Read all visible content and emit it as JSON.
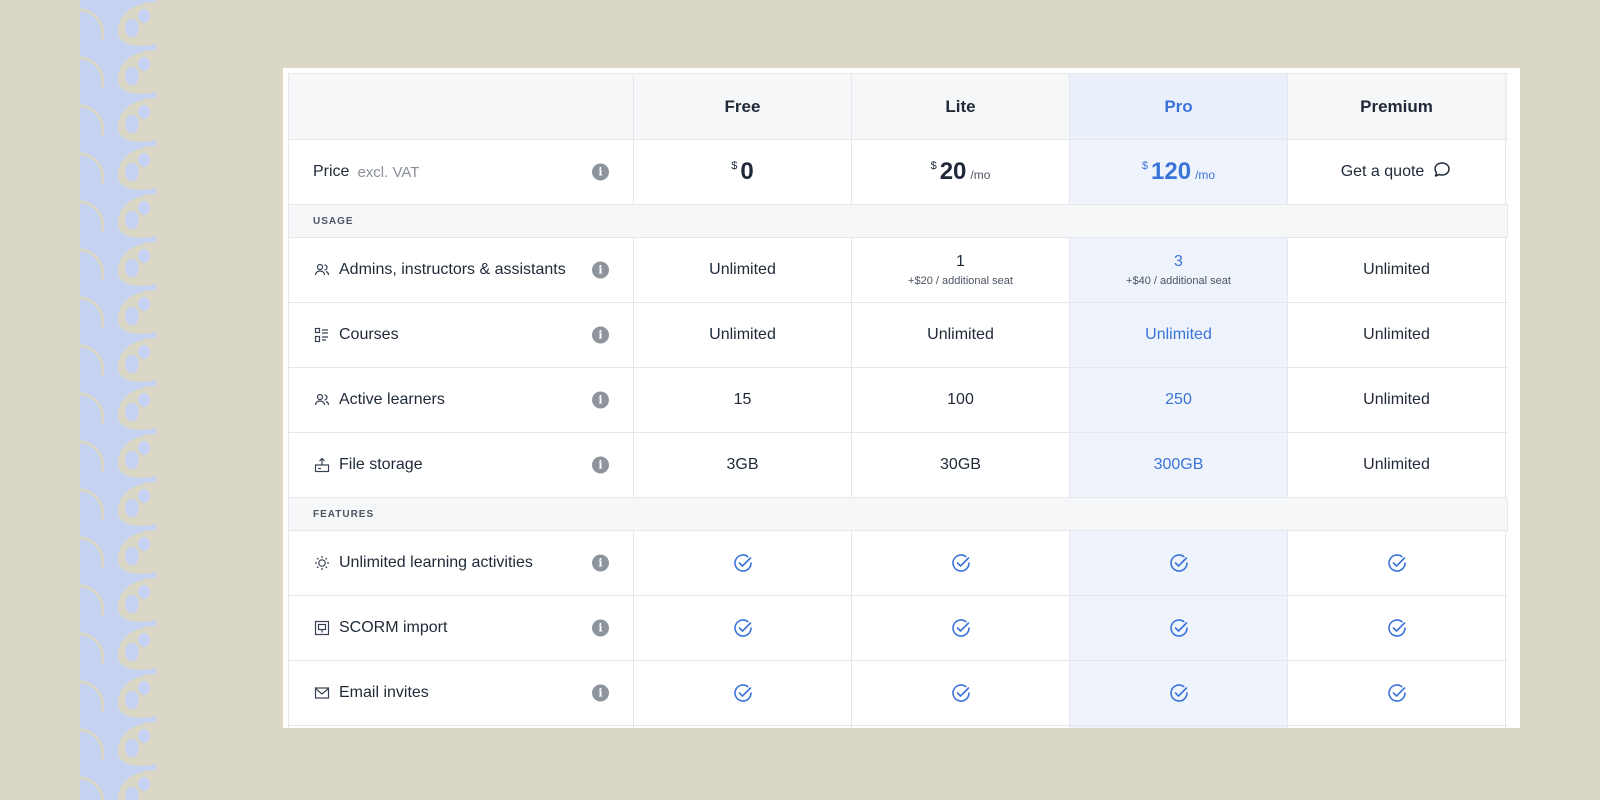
{
  "colors": {
    "page_background": "#dbd7c6",
    "decor_strip": "#c6d2f2",
    "highlight_column": "#eef3fc",
    "accent_blue": "#3b74d9",
    "border": "#e5e7eb",
    "header_background": "#f6f7f9"
  },
  "plans": {
    "headers": [
      "Free",
      "Lite",
      "Pro",
      "Premium"
    ],
    "highlighted": "Pro"
  },
  "price_row": {
    "label": "Price",
    "sublabel": "excl. VAT",
    "currency": "$",
    "free_amount": "0",
    "lite_amount": "20",
    "lite_period": "/mo",
    "pro_amount": "120",
    "pro_period": "/mo",
    "premium_label": "Get a quote"
  },
  "sections": {
    "usage": "USAGE",
    "features": "FEATURES"
  },
  "usage_rows": [
    {
      "label": "Admins, instructors & assistants",
      "icon": "users-icon",
      "free": "Unlimited",
      "lite": "1",
      "lite_sub": "+$20 / additional seat",
      "pro": "3",
      "pro_sub": "+$40 / additional seat",
      "premium": "Unlimited"
    },
    {
      "label": "Courses",
      "icon": "courses-icon",
      "free": "Unlimited",
      "lite": "Unlimited",
      "pro": "Unlimited",
      "premium": "Unlimited"
    },
    {
      "label": "Active learners",
      "icon": "learners-icon",
      "free": "15",
      "lite": "100",
      "pro": "250",
      "premium": "Unlimited"
    },
    {
      "label": "File storage",
      "icon": "storage-icon",
      "free": "3GB",
      "lite": "30GB",
      "pro": "300GB",
      "premium": "Unlimited"
    }
  ],
  "feature_rows": [
    {
      "label": "Unlimited learning activities",
      "icon": "lightbulb-icon",
      "included": [
        true,
        true,
        true,
        true
      ]
    },
    {
      "label": "SCORM import",
      "icon": "scorm-icon",
      "included": [
        true,
        true,
        true,
        true
      ]
    },
    {
      "label": "Email invites",
      "icon": "mail-icon",
      "included": [
        true,
        true,
        true,
        true
      ]
    }
  ],
  "info_glyph": "i"
}
